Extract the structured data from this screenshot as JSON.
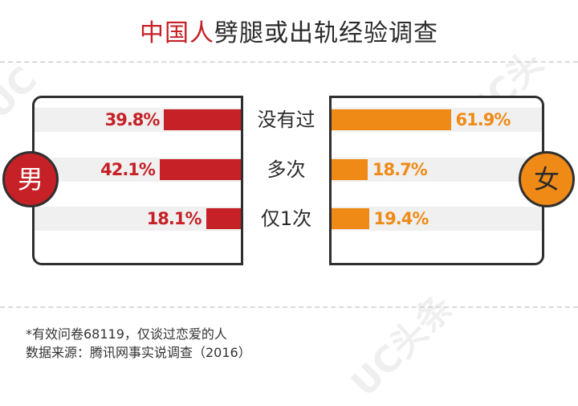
{
  "title": {
    "part1": "中国人",
    "part2": "劈腿或出轨经验调查"
  },
  "left_label": "男",
  "right_label": "女",
  "watermark": "UC头条",
  "footnotes": [
    "*有效问卷68119，仅谈过恋爱的人",
    "数据来源：腾讯网事实说调查（2016）"
  ],
  "colors": {
    "male": "#c62126",
    "female": "#f08a16",
    "text": "#2b2b2b"
  },
  "chart_data": {
    "type": "bar",
    "orientation": "horizontal-butterfly",
    "title": "中国人劈腿或出轨经验调查",
    "categories": [
      "没有过",
      "多次",
      "仅1次"
    ],
    "series": [
      {
        "name": "男",
        "values": [
          39.8,
          42.1,
          18.1
        ],
        "labels": [
          "39.8%",
          "42.1%",
          "18.1%"
        ]
      },
      {
        "name": "女",
        "values": [
          61.9,
          18.7,
          19.4
        ],
        "labels": [
          "61.9%",
          "18.7%",
          "19.4%"
        ]
      }
    ],
    "xlim": [
      0,
      100
    ],
    "unit": "%",
    "grid": false
  }
}
